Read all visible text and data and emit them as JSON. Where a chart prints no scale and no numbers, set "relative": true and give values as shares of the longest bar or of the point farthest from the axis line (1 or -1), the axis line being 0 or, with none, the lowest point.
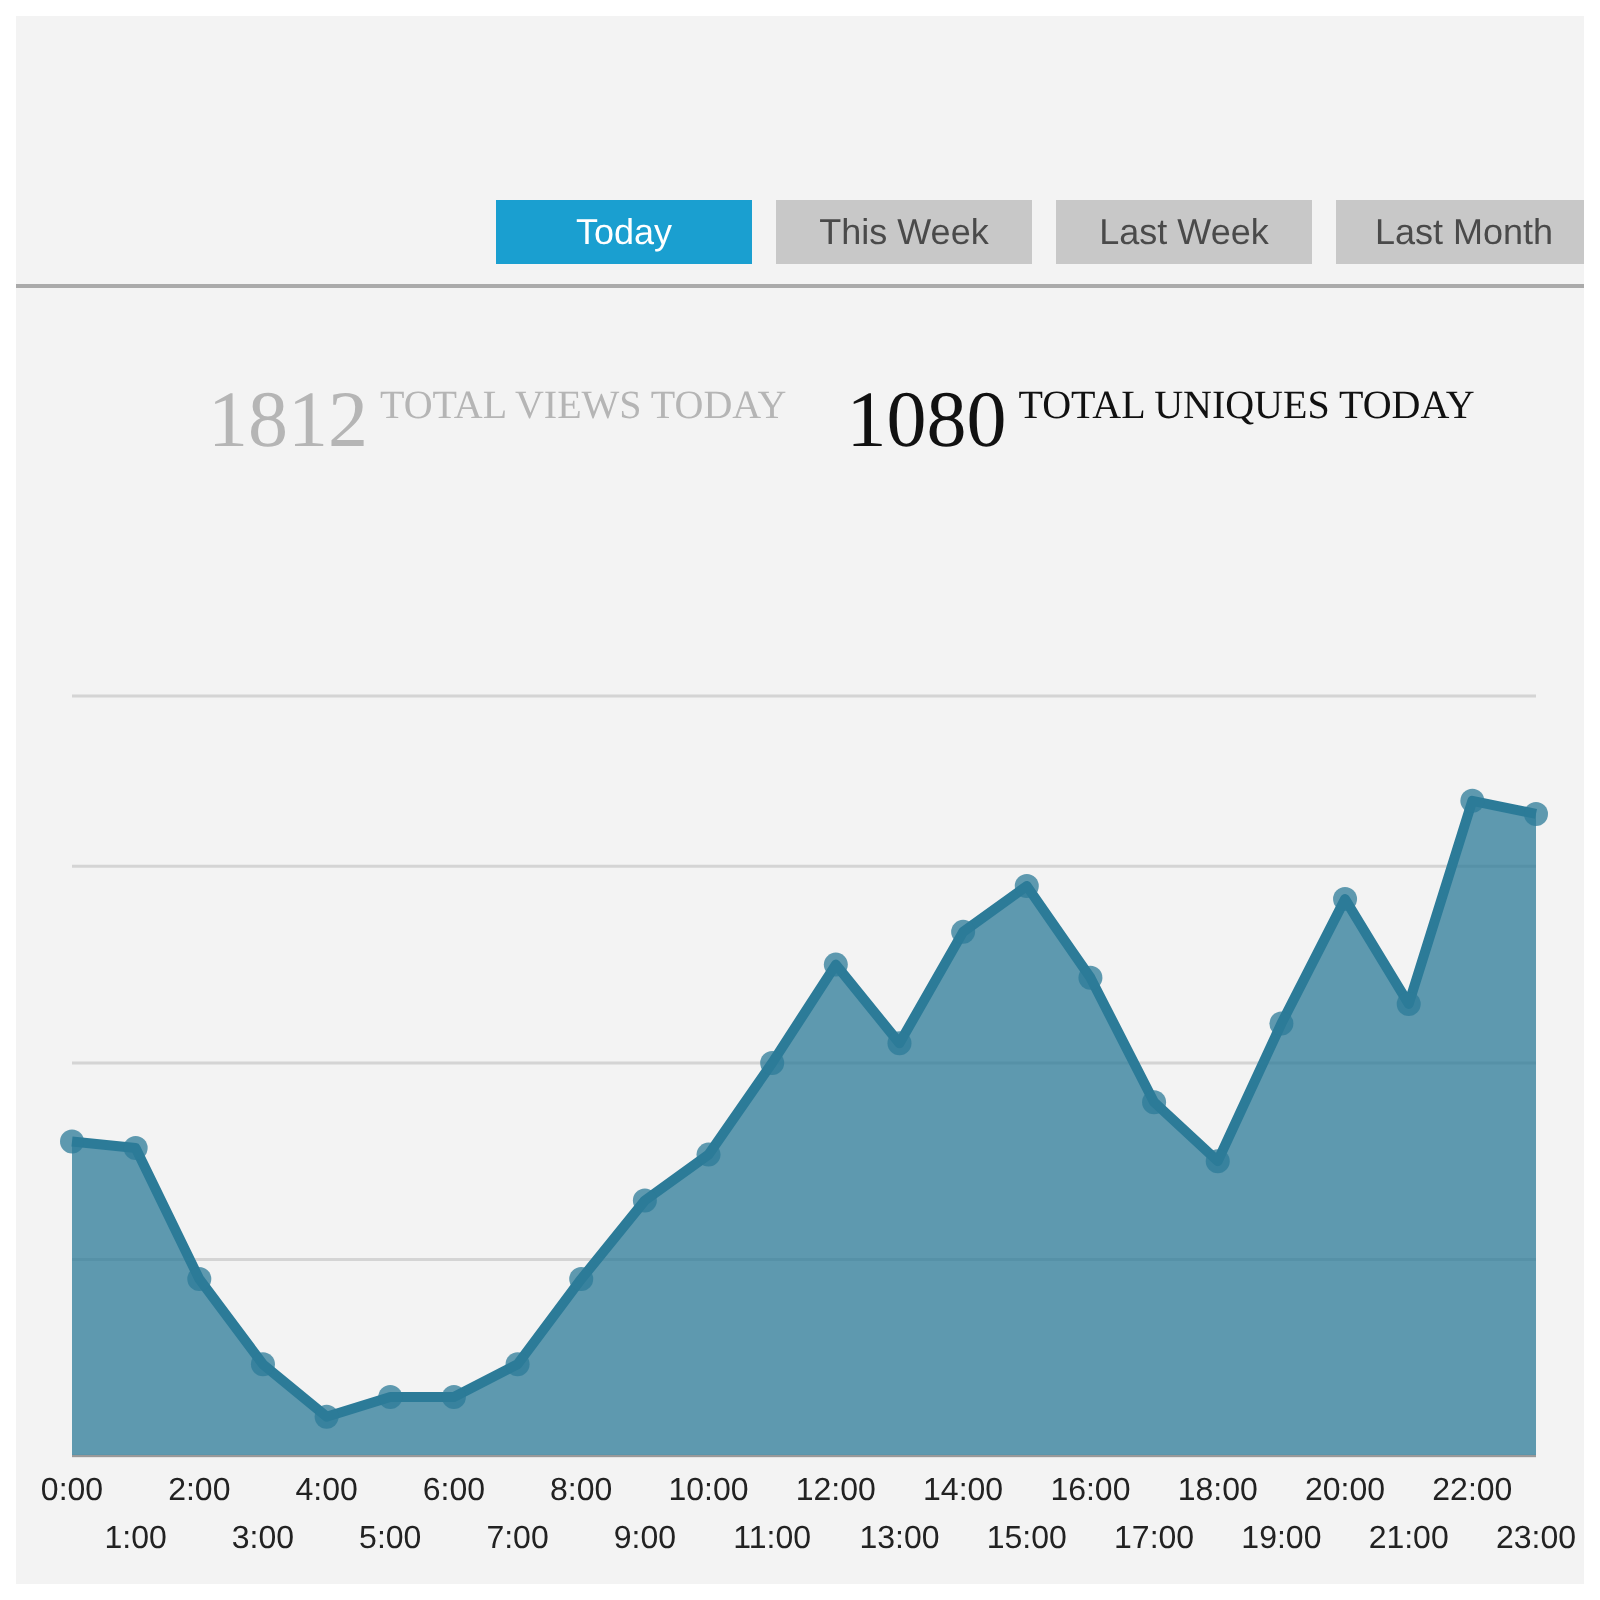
{
  "chart_data": {
    "type": "area",
    "title": "TOTAL VIEWS TODAY",
    "subtitle": "TOTAL UNIQUES TODAY",
    "annotations": [
      "Today",
      "This Week",
      "Last Week",
      "Last Month",
      "1812",
      "1080"
    ],
    "categories": [
      "0:00",
      "1:00",
      "2:00",
      "3:00",
      "4:00",
      "5:00",
      "6:00",
      "7:00",
      "8:00",
      "9:00",
      "10:00",
      "11:00",
      "12:00",
      "13:00",
      "14:00",
      "15:00",
      "16:00",
      "17:00",
      "18:00",
      "19:00",
      "20:00",
      "21:00",
      "22:00",
      "23:00"
    ],
    "relative": true,
    "series": [
      {
        "color": "#2c7b98",
        "values": [
          0.48,
          0.47,
          0.27,
          0.14,
          0.06,
          0.09,
          0.09,
          0.14,
          0.27,
          0.39,
          0.46,
          0.6,
          0.75,
          0.63,
          0.8,
          0.87,
          0.73,
          0.54,
          0.45,
          0.66,
          0.85,
          0.69,
          1,
          0.98
        ]
      }
    ],
    "grid": "y",
    "marker": "circle"
  }
}
